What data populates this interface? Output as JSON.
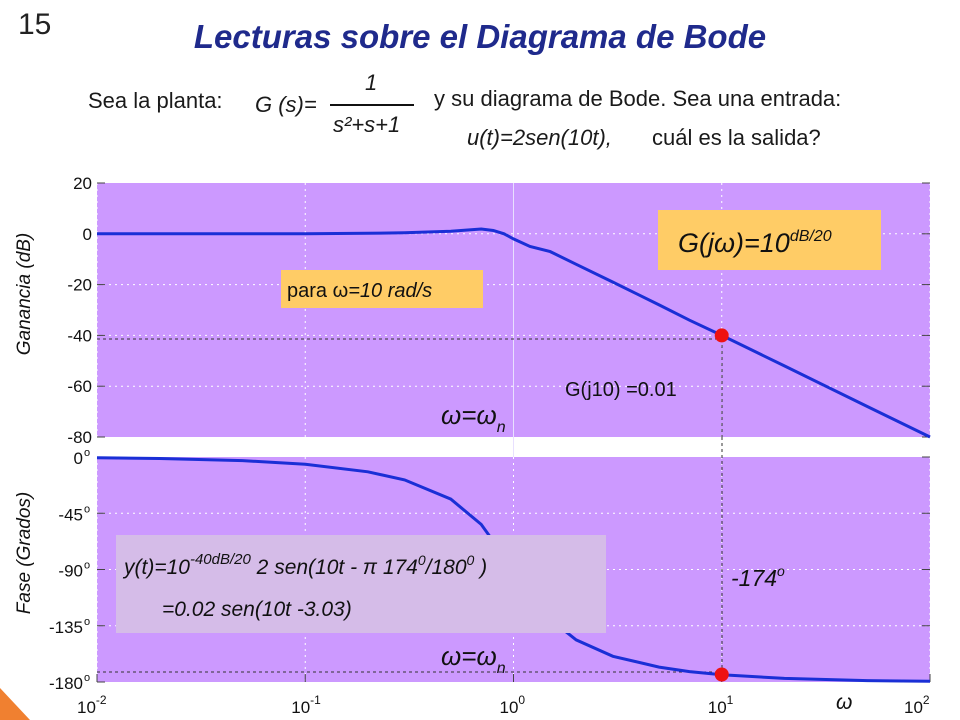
{
  "slide": {
    "number": "15",
    "title": "Lecturas sobre el Diagrama de Bode",
    "intro_left": "Sea la planta:",
    "plant_lhs": "G (s)=",
    "plant_num": "1",
    "plant_den": "s²+s+1",
    "intro_right_line1": "y su diagrama de Bode. Sea una entrada:",
    "input_func": "u(t)=2sen(10t),",
    "intro_right_line2": "cuál es la salida?"
  },
  "colors": {
    "plot_bg": "#cc99ff",
    "curve": "#1a2fd6",
    "marker": "#ee1111",
    "title": "#1f2a8c",
    "annotation_box": "#ffcc66",
    "formula_box": "#d5bce8"
  },
  "chart_data": [
    {
      "type": "line",
      "name": "magnitude",
      "x_scale": "log",
      "xlim": [
        0.01,
        100
      ],
      "ylim": [
        -80,
        20
      ],
      "ylabel": "Ganancia (dB)",
      "yticks": [
        "20",
        "0",
        "-20",
        "-40",
        "-60",
        "-80"
      ],
      "ytick_values": [
        20,
        0,
        -20,
        -40,
        -60,
        -80
      ],
      "grid": true,
      "series": [
        {
          "x": [
            0.01,
            0.02,
            0.05,
            0.1,
            0.2,
            0.3,
            0.5,
            0.7,
            0.8,
            0.9,
            1.0,
            1.2,
            1.5,
            2,
            3,
            5,
            7,
            10,
            20,
            50,
            100
          ],
          "y": [
            0,
            0,
            0,
            0,
            0.2,
            0.4,
            1.0,
            1.9,
            1.3,
            0.0,
            -2,
            -5,
            -7,
            -12,
            -19,
            -28,
            -34,
            -40,
            -52,
            -68,
            -80
          ]
        }
      ],
      "marker": {
        "x": 10,
        "y": -40
      },
      "annotations": {
        "gain_formula_base": "G(j",
        "gain_formula_omega": "ω",
        "gain_formula_mid": ")=10",
        "gain_formula_exp": "dB/20",
        "para_prefix": "para ",
        "para_omega": "ω",
        "para_suffix": "=10 rad/s",
        "g10": "G(j10) =0.01",
        "wn_omega": "ω",
        "wn_eq": "=",
        "wn_omega2": "ω",
        "wn_sub": "n"
      }
    },
    {
      "type": "line",
      "name": "phase",
      "x_scale": "log",
      "xlim": [
        0.01,
        100
      ],
      "ylim": [
        -180,
        0
      ],
      "ylabel": "Fase (Grados)",
      "yticks": [
        "0",
        "-45",
        "-90",
        "-135",
        "-180"
      ],
      "ytick_values": [
        0,
        -45,
        -90,
        -135,
        -180
      ],
      "ytick_suffix": "o",
      "xticks_base": [
        "10",
        "10",
        "10",
        "10",
        "10"
      ],
      "xticks_exp": [
        "-2",
        "-1",
        "0",
        "1",
        "2"
      ],
      "xtick_values": [
        0.01,
        0.1,
        1,
        10,
        100
      ],
      "xlabel": "ω",
      "grid": true,
      "series": [
        {
          "x": [
            0.01,
            0.02,
            0.05,
            0.1,
            0.2,
            0.3,
            0.5,
            0.7,
            1.0,
            1.5,
            2,
            3,
            5,
            7,
            10,
            20,
            50,
            100
          ],
          "y": [
            -0.6,
            -1.2,
            -2.9,
            -5.8,
            -11.8,
            -18.3,
            -33.7,
            -53.9,
            -90,
            -129.8,
            -146.3,
            -159.4,
            -168.1,
            -171.7,
            -174.2,
            -177.1,
            -178.9,
            -179.4
          ]
        }
      ],
      "marker": {
        "x": 10,
        "y": -174
      },
      "annotations": {
        "phase_value": "-174",
        "phase_sup": "o",
        "formula_line1_a": "y(t)=10",
        "formula_line1_exp": "-40dB/20",
        "formula_line1_b": " 2 sen(10t - ",
        "formula_line1_pi": "π",
        "formula_line1_c": " 174",
        "formula_line1_sup1": "0",
        "formula_line1_d": "/180",
        "formula_line1_sup2": "0",
        "formula_line1_e": " )",
        "formula_line2": "=0.02 sen(10t -3.03)",
        "wn_omega": "ω",
        "wn_eq": "=",
        "wn_omega2": "ω",
        "wn_sub": "n"
      }
    }
  ]
}
